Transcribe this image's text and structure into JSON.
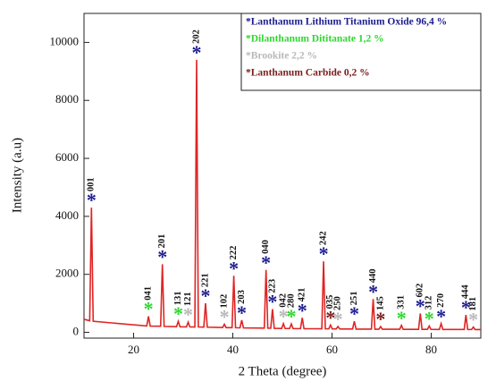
{
  "chart_data": {
    "type": "line",
    "xlabel": "2 Theta (degree)",
    "ylabel": "Intensity (a.u)",
    "xlim": [
      10,
      90
    ],
    "ylim": [
      -200,
      11000
    ],
    "xticks": [
      20,
      40,
      60,
      80
    ],
    "yticks": [
      0,
      2000,
      4000,
      6000,
      8000,
      10000
    ],
    "x": [
      10,
      11.15,
      11.5,
      11.85,
      22.65,
      23.0,
      23.35,
      25.45,
      25.8,
      26.15,
      28.65,
      29.0,
      29.35,
      30.65,
      31.0,
      31.35,
      32.35,
      32.7,
      33.05,
      34.15,
      34.5,
      34.85,
      37.95,
      38.3,
      38.65,
      39.85,
      40.2,
      40.55,
      41.45,
      41.8,
      42.15,
      46.35,
      46.7,
      47.05,
      47.65,
      48.0,
      48.35,
      49.85,
      50.2,
      50.55,
      51.45,
      51.8,
      52.15,
      53.65,
      54.0,
      54.35,
      57.95,
      58.3,
      58.65,
      59.35,
      59.7,
      60.05,
      60.85,
      61.2,
      61.55,
      64.15,
      64.5,
      64.85,
      67.95,
      68.3,
      68.65,
      69.45,
      69.8,
      70.15,
      73.65,
      74.0,
      74.35,
      77.45,
      77.8,
      78.15,
      79.25,
      79.6,
      79.95,
      81.65,
      82.0,
      82.35,
      86.65,
      87.0,
      87.35,
      88.15,
      88.5,
      88.85,
      90
    ],
    "series": [
      {
        "color": "#e02424",
        "values": [
          450,
          400,
          4300,
          380,
          220,
          550,
          215,
          210,
          2350,
          205,
          195,
          380,
          190,
          188,
          350,
          186,
          185,
          9400,
          185,
          180,
          1000,
          178,
          165,
          280,
          162,
          160,
          1950,
          158,
          155,
          420,
          153,
          145,
          2150,
          143,
          140,
          800,
          138,
          135,
          300,
          133,
          132,
          290,
          130,
          128,
          500,
          126,
          122,
          2450,
          120,
          120,
          250,
          118,
          117,
          200,
          116,
          114,
          380,
          112,
          110,
          1150,
          108,
          108,
          200,
          107,
          105,
          240,
          104,
          103,
          650,
          102,
          102,
          220,
          101,
          100,
          300,
          100,
          98,
          600,
          97,
          97,
          180,
          96,
          95
        ]
      }
    ],
    "phases": [
      {
        "name": "*Lanthanum Lithium Titanium Oxide 96,4 %",
        "color": "#1c1c8f"
      },
      {
        "name": "*Dilanthanum Dititanate 1,2 %",
        "color": "#2fd62f"
      },
      {
        "name": "*Brookite 2,2 %",
        "color": "#b8b8b8"
      },
      {
        "name": "*Lanthanum Carbide 0,2 %",
        "color": "#7a1c1c"
      }
    ],
    "peak_marker": "*",
    "peaks": [
      {
        "label": "001",
        "x": 11.5,
        "phase": 0
      },
      {
        "label": "041",
        "x": 23.0,
        "phase": 1
      },
      {
        "label": "201",
        "x": 25.8,
        "phase": 0
      },
      {
        "label": "131",
        "x": 29.0,
        "phase": 1
      },
      {
        "label": "121",
        "x": 31.0,
        "phase": 2
      },
      {
        "label": "202",
        "x": 32.7,
        "phase": 0
      },
      {
        "label": "221",
        "x": 34.5,
        "phase": 0
      },
      {
        "label": "102",
        "x": 38.3,
        "phase": 2
      },
      {
        "label": "222",
        "x": 40.2,
        "phase": 0
      },
      {
        "label": "203",
        "x": 41.8,
        "phase": 0
      },
      {
        "label": "040",
        "x": 46.7,
        "phase": 0
      },
      {
        "label": "223",
        "x": 48.0,
        "phase": 0
      },
      {
        "label": "042",
        "x": 50.2,
        "phase": 2
      },
      {
        "label": "280",
        "x": 51.8,
        "phase": 1
      },
      {
        "label": "421",
        "x": 54.0,
        "phase": 0
      },
      {
        "label": "242",
        "x": 58.3,
        "phase": 0
      },
      {
        "label": "035",
        "x": 59.7,
        "phase": 3
      },
      {
        "label": "250",
        "x": 61.2,
        "phase": 2
      },
      {
        "label": "251",
        "x": 64.5,
        "phase": 0
      },
      {
        "label": "440",
        "x": 68.3,
        "phase": 0
      },
      {
        "label": "145",
        "x": 69.8,
        "phase": 3
      },
      {
        "label": "331",
        "x": 74.0,
        "phase": 1
      },
      {
        "label": "602",
        "x": 77.8,
        "phase": 0
      },
      {
        "label": "312",
        "x": 79.6,
        "phase": 1
      },
      {
        "label": "270",
        "x": 82.0,
        "phase": 0
      },
      {
        "label": "444",
        "x": 87.0,
        "phase": 0
      },
      {
        "label": "181",
        "x": 88.5,
        "phase": 2
      }
    ]
  }
}
